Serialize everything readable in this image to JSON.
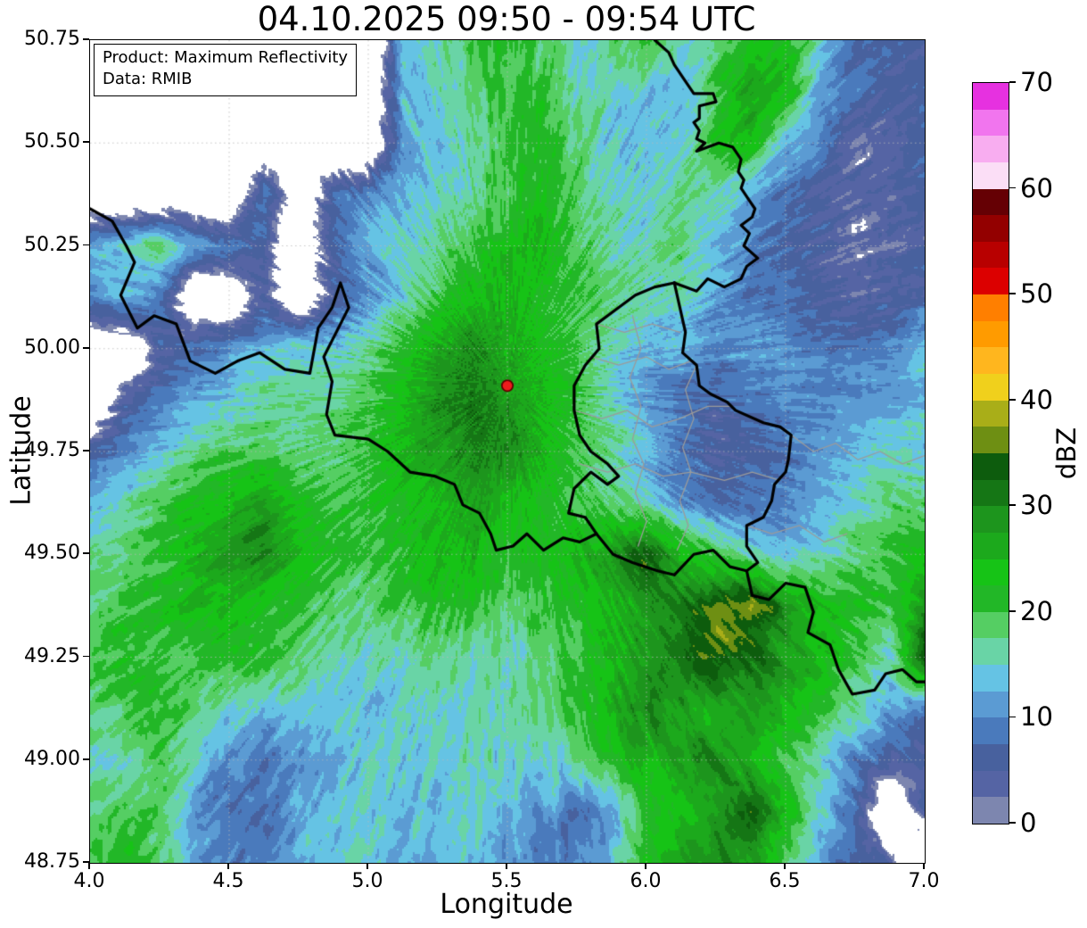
{
  "title": "04.10.2025 09:50 - 09:54 UTC",
  "annotation_box": {
    "line1": "Product: Maximum Reflectivity",
    "line2": "Data: RMIB"
  },
  "chart_data": {
    "type": "heatmap",
    "title": "04.10.2025 09:50 - 09:54 UTC",
    "xlabel": "Longitude",
    "ylabel": "Latitude",
    "xlim": [
      4.0,
      7.0
    ],
    "ylim": [
      48.75,
      50.75
    ],
    "xticks": [
      4.0,
      4.5,
      5.0,
      5.5,
      6.0,
      6.5,
      7.0
    ],
    "xtick_labels": [
      "4.0",
      "4.5",
      "5.0",
      "5.5",
      "6.0",
      "6.5",
      "7.0"
    ],
    "yticks": [
      48.75,
      49.0,
      49.25,
      49.5,
      49.75,
      50.0,
      50.25,
      50.5,
      50.75
    ],
    "ytick_labels": [
      "48.75",
      "49.00",
      "49.25",
      "49.50",
      "49.75",
      "50.00",
      "50.25",
      "50.50",
      "50.75"
    ],
    "grid": "dotted",
    "grid_color": "#b9b9b9",
    "colorbar": {
      "label": "dBZ",
      "min": 0,
      "max": 70,
      "step": 2.5,
      "ticks": [
        0,
        10,
        20,
        30,
        40,
        50,
        60,
        70
      ],
      "tick_labels": [
        "0",
        "10",
        "20",
        "30",
        "40",
        "50",
        "60",
        "70"
      ],
      "colors_bottom_to_top": [
        "#7d86af",
        "#5564a4",
        "#48619e",
        "#4a7abc",
        "#5b9bd3",
        "#65c3e4",
        "#69d4a6",
        "#55ce63",
        "#22b727",
        "#16c316",
        "#1ca91c",
        "#1d951d",
        "#157615",
        "#0d5c0d",
        "#6e8f13",
        "#a9ae18",
        "#f0d01c",
        "#ffb61e",
        "#ff9b00",
        "#ff7f00",
        "#dc0000",
        "#b80000",
        "#930000",
        "#650004",
        "#fbdef6",
        "#f8adf0",
        "#f175ee",
        "#e631e0"
      ]
    },
    "no_echo_color": "#ffffff",
    "marker": {
      "name": "radar-site",
      "lon": 5.5,
      "lat": 49.91,
      "fill": "#ec1c1c",
      "edge": "#5e0000"
    },
    "grid_lons": [
      4.0,
      4.125,
      4.25,
      4.375,
      4.5,
      4.625,
      4.75,
      4.875,
      5.0,
      5.125,
      5.25,
      5.375,
      5.5,
      5.625,
      5.75,
      5.875,
      6.0,
      6.125,
      6.25,
      6.375,
      6.5,
      6.625,
      6.75,
      6.875,
      7.0
    ],
    "grid_lats": [
      50.75,
      50.625,
      50.5,
      50.375,
      50.25,
      50.125,
      50.0,
      49.875,
      49.75,
      49.625,
      49.5,
      49.375,
      49.25,
      49.125,
      49.0,
      48.875,
      48.75
    ],
    "dbz_grid": [
      [
        null,
        null,
        null,
        null,
        null,
        null,
        null,
        null,
        null,
        13,
        16,
        20,
        22,
        18,
        15,
        18,
        20,
        14,
        18,
        24,
        22,
        14,
        8,
        6,
        6
      ],
      [
        null,
        null,
        null,
        null,
        null,
        null,
        null,
        null,
        null,
        12,
        15,
        18,
        20,
        20,
        17,
        15,
        14,
        13,
        20,
        27,
        25,
        12,
        7,
        5,
        6
      ],
      [
        null,
        null,
        null,
        null,
        null,
        null,
        null,
        null,
        null,
        12,
        14,
        16,
        20,
        22,
        18,
        14,
        13,
        14,
        22,
        25,
        13,
        8,
        4,
        3,
        6
      ],
      [
        null,
        null,
        null,
        null,
        null,
        10,
        null,
        8,
        10,
        13,
        15,
        17,
        20,
        22,
        18,
        15,
        14,
        18,
        16,
        11,
        8,
        5,
        3,
        3,
        6
      ],
      [
        12,
        15,
        18,
        12,
        9,
        6,
        null,
        6,
        12,
        15,
        17,
        20,
        24,
        25,
        20,
        16,
        15,
        18,
        14,
        10,
        7,
        5,
        3,
        4,
        5
      ],
      [
        10,
        13,
        9,
        null,
        null,
        5,
        null,
        5,
        10,
        15,
        20,
        24,
        26,
        22,
        20,
        18,
        16,
        16,
        12,
        8,
        8,
        6,
        4,
        5,
        7
      ],
      [
        null,
        null,
        5,
        8,
        11,
        13,
        15,
        14,
        17,
        21,
        27,
        30,
        26,
        23,
        20,
        15,
        12,
        12,
        10,
        11,
        10,
        8,
        8,
        10,
        14
      ],
      [
        null,
        5,
        8,
        12,
        14,
        17,
        16,
        17,
        20,
        24,
        29,
        32,
        28,
        25,
        20,
        15,
        12,
        8,
        6,
        8,
        10,
        10,
        12,
        12,
        13
      ],
      [
        6,
        10,
        14,
        17,
        19,
        18,
        17,
        18,
        21,
        25,
        28,
        30,
        30,
        25,
        20,
        17,
        13,
        8,
        5,
        6,
        8,
        10,
        13,
        15,
        15
      ],
      [
        14,
        17,
        20,
        22,
        25,
        28,
        22,
        20,
        21,
        22,
        25,
        28,
        25,
        22,
        20,
        18,
        15,
        10,
        8,
        8,
        10,
        13,
        15,
        18,
        18
      ],
      [
        17,
        18,
        20,
        25,
        28,
        30,
        25,
        22,
        20,
        22,
        25,
        25,
        22,
        22,
        25,
        29,
        35,
        25,
        20,
        15,
        13,
        15,
        18,
        20,
        22
      ],
      [
        18,
        20,
        22,
        25,
        25,
        22,
        20,
        18,
        18,
        20,
        22,
        20,
        18,
        20,
        22,
        25,
        28,
        31,
        36,
        38,
        30,
        25,
        22,
        20,
        30
      ],
      [
        20,
        22,
        20,
        20,
        22,
        20,
        18,
        16,
        15,
        16,
        18,
        16,
        15,
        18,
        20,
        25,
        28,
        32,
        35,
        32,
        28,
        25,
        20,
        15,
        35
      ],
      [
        18,
        20,
        22,
        18,
        15,
        13,
        15,
        14,
        13,
        15,
        16,
        15,
        16,
        18,
        22,
        25,
        30,
        28,
        25,
        28,
        25,
        22,
        18,
        12,
        9
      ],
      [
        16,
        18,
        20,
        15,
        10,
        8,
        10,
        13,
        15,
        14,
        15,
        16,
        15,
        14,
        18,
        22,
        25,
        28,
        30,
        25,
        20,
        15,
        10,
        6,
        4
      ],
      [
        18,
        20,
        18,
        12,
        8,
        8,
        12,
        14,
        15,
        13,
        14,
        15,
        13,
        10,
        8,
        12,
        20,
        25,
        28,
        34,
        25,
        15,
        8,
        null,
        5
      ],
      [
        20,
        22,
        18,
        12,
        8,
        10,
        13,
        15,
        14,
        12,
        13,
        14,
        12,
        8,
        10,
        15,
        22,
        25,
        30,
        28,
        20,
        12,
        6,
        4,
        null
      ]
    ],
    "borders": {
      "country_color": "#000000",
      "region_color": "#9b9b9b",
      "country": [
        [
          [
            4.0,
            50.34
          ],
          [
            4.08,
            50.31
          ],
          [
            4.13,
            50.25
          ],
          [
            4.16,
            50.21
          ],
          [
            4.11,
            50.13
          ],
          [
            4.17,
            50.05
          ],
          [
            4.23,
            50.08
          ],
          [
            4.31,
            50.06
          ],
          [
            4.36,
            49.97
          ],
          [
            4.45,
            49.94
          ],
          [
            4.53,
            49.97
          ],
          [
            4.61,
            49.99
          ],
          [
            4.7,
            49.95
          ],
          [
            4.79,
            49.94
          ],
          [
            4.82,
            50.05
          ],
          [
            4.87,
            50.1
          ],
          [
            4.9,
            50.16
          ],
          [
            4.93,
            50.1
          ],
          [
            4.84,
            49.98
          ],
          [
            4.87,
            49.92
          ],
          [
            4.85,
            49.84
          ],
          [
            4.88,
            49.79
          ],
          [
            5.0,
            49.78
          ],
          [
            5.07,
            49.75
          ],
          [
            5.15,
            49.7
          ],
          [
            5.24,
            49.69
          ],
          [
            5.31,
            49.67
          ],
          [
            5.34,
            49.62
          ],
          [
            5.4,
            49.6
          ],
          [
            5.44,
            49.55
          ],
          [
            5.46,
            49.51
          ],
          [
            5.52,
            49.52
          ],
          [
            5.57,
            49.55
          ],
          [
            5.63,
            49.51
          ],
          [
            5.7,
            49.54
          ],
          [
            5.76,
            49.53
          ],
          [
            5.82,
            49.55
          ]
        ],
        [
          [
            5.82,
            49.55
          ],
          [
            5.88,
            49.5
          ],
          [
            5.95,
            49.48
          ],
          [
            6.04,
            49.46
          ],
          [
            6.1,
            49.45
          ],
          [
            6.17,
            49.5
          ],
          [
            6.24,
            49.51
          ],
          [
            6.3,
            49.47
          ],
          [
            6.36,
            49.46
          ],
          [
            6.38,
            49.4
          ],
          [
            6.44,
            49.39
          ],
          [
            6.5,
            49.43
          ],
          [
            6.57,
            49.42
          ],
          [
            6.6,
            49.36
          ],
          [
            6.58,
            49.31
          ],
          [
            6.66,
            49.28
          ],
          [
            6.69,
            49.22
          ],
          [
            6.74,
            49.16
          ],
          [
            6.82,
            49.17
          ],
          [
            6.86,
            49.21
          ],
          [
            6.92,
            49.22
          ],
          [
            6.97,
            49.19
          ],
          [
            7.0,
            49.19
          ]
        ],
        [
          [
            5.82,
            49.55
          ],
          [
            5.78,
            49.59
          ],
          [
            5.72,
            49.6
          ],
          [
            5.74,
            49.66
          ],
          [
            5.8,
            49.7
          ],
          [
            5.86,
            49.67
          ],
          [
            5.9,
            49.69
          ],
          [
            5.86,
            49.72
          ],
          [
            5.8,
            49.75
          ],
          [
            5.76,
            49.79
          ],
          [
            5.74,
            49.85
          ],
          [
            5.74,
            49.91
          ],
          [
            5.78,
            49.96
          ],
          [
            5.83,
            50.0
          ],
          [
            5.82,
            50.06
          ],
          [
            5.88,
            50.09
          ],
          [
            5.96,
            50.13
          ],
          [
            6.03,
            50.15
          ],
          [
            6.1,
            50.16
          ]
        ],
        [
          [
            6.03,
            50.75
          ],
          [
            6.08,
            50.72
          ],
          [
            6.1,
            50.69
          ],
          [
            6.14,
            50.65
          ],
          [
            6.17,
            50.62
          ],
          [
            6.24,
            50.62
          ],
          [
            6.25,
            50.6
          ],
          [
            6.19,
            50.59
          ],
          [
            6.19,
            50.56
          ],
          [
            6.17,
            50.55
          ],
          [
            6.19,
            50.53
          ],
          [
            6.18,
            50.51
          ],
          [
            6.21,
            50.5
          ],
          [
            6.18,
            50.48
          ],
          [
            6.26,
            50.5
          ],
          [
            6.31,
            50.49
          ],
          [
            6.34,
            50.46
          ],
          [
            6.33,
            50.43
          ],
          [
            6.35,
            50.41
          ],
          [
            6.34,
            50.39
          ],
          [
            6.37,
            50.36
          ],
          [
            6.39,
            50.34
          ],
          [
            6.38,
            50.32
          ],
          [
            6.34,
            50.3
          ],
          [
            6.37,
            50.28
          ],
          [
            6.35,
            50.25
          ],
          [
            6.4,
            50.22
          ],
          [
            6.36,
            50.2
          ],
          [
            6.34,
            50.17
          ],
          [
            6.28,
            50.15
          ],
          [
            6.22,
            50.17
          ],
          [
            6.18,
            50.14
          ],
          [
            6.1,
            50.16
          ]
        ],
        [
          [
            6.1,
            50.16
          ],
          [
            6.12,
            50.1
          ],
          [
            6.14,
            50.04
          ],
          [
            6.13,
            49.99
          ],
          [
            6.18,
            49.96
          ],
          [
            6.19,
            49.91
          ],
          [
            6.23,
            49.89
          ],
          [
            6.29,
            49.87
          ],
          [
            6.32,
            49.85
          ],
          [
            6.42,
            49.82
          ],
          [
            6.48,
            49.81
          ],
          [
            6.52,
            49.79
          ],
          [
            6.51,
            49.73
          ],
          [
            6.5,
            49.7
          ],
          [
            6.46,
            49.67
          ],
          [
            6.45,
            49.63
          ],
          [
            6.42,
            49.59
          ],
          [
            6.36,
            49.57
          ],
          [
            6.36,
            49.52
          ],
          [
            6.4,
            49.48
          ],
          [
            6.36,
            49.46
          ]
        ]
      ],
      "region": [
        [
          [
            5.74,
            49.85
          ],
          [
            5.84,
            49.83
          ],
          [
            5.93,
            49.85
          ],
          [
            6.02,
            49.81
          ],
          [
            6.12,
            49.83
          ],
          [
            6.22,
            49.86
          ],
          [
            6.3,
            49.86
          ]
        ],
        [
          [
            5.76,
            49.72
          ],
          [
            5.86,
            49.7
          ],
          [
            5.96,
            49.72
          ],
          [
            6.06,
            49.69
          ],
          [
            6.16,
            49.7
          ],
          [
            6.28,
            49.68
          ],
          [
            6.38,
            49.7
          ],
          [
            6.48,
            49.68
          ]
        ],
        [
          [
            5.95,
            50.08
          ],
          [
            5.98,
            50.0
          ],
          [
            5.94,
            49.93
          ],
          [
            5.98,
            49.86
          ],
          [
            5.95,
            49.78
          ],
          [
            5.99,
            49.72
          ],
          [
            5.96,
            49.65
          ],
          [
            6.0,
            49.58
          ],
          [
            5.97,
            49.52
          ]
        ],
        [
          [
            6.18,
            49.96
          ],
          [
            6.14,
            49.9
          ],
          [
            6.17,
            49.83
          ],
          [
            6.13,
            49.76
          ],
          [
            6.16,
            49.7
          ],
          [
            6.12,
            49.63
          ],
          [
            6.15,
            49.57
          ],
          [
            6.11,
            49.51
          ]
        ],
        [
          [
            6.52,
            49.79
          ],
          [
            6.6,
            49.75
          ],
          [
            6.68,
            49.77
          ],
          [
            6.76,
            49.73
          ],
          [
            6.84,
            49.75
          ],
          [
            6.92,
            49.72
          ],
          [
            7.0,
            49.74
          ]
        ],
        [
          [
            6.36,
            49.57
          ],
          [
            6.45,
            49.55
          ],
          [
            6.55,
            49.57
          ],
          [
            6.64,
            49.53
          ],
          [
            6.72,
            49.55
          ]
        ],
        [
          [
            5.8,
            49.98
          ],
          [
            5.9,
            49.96
          ],
          [
            6.0,
            49.98
          ],
          [
            6.08,
            49.95
          ],
          [
            6.16,
            49.97
          ]
        ],
        [
          [
            5.82,
            50.06
          ],
          [
            5.92,
            50.04
          ],
          [
            6.02,
            50.06
          ],
          [
            6.12,
            50.04
          ]
        ]
      ]
    }
  }
}
